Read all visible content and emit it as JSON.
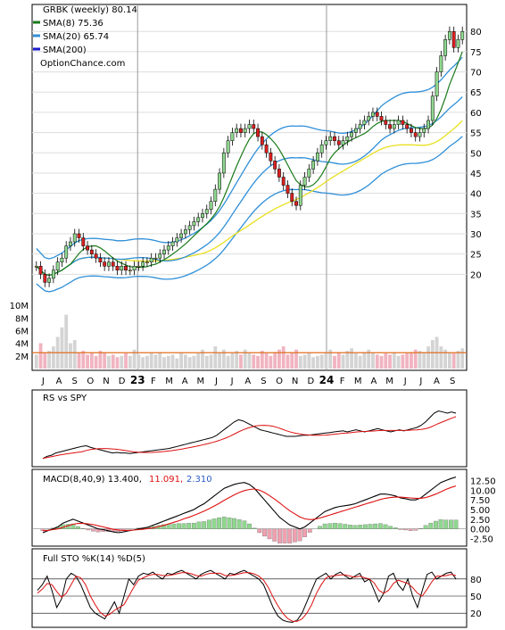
{
  "header": {
    "ticker_line": "GRBK (weekly) 80.14",
    "site": "OptionChance.com"
  },
  "legend": [
    {
      "label": "SMA(8) 75.36",
      "color": "#1a7a1a"
    },
    {
      "label": "SMA(20) 65.74",
      "color": "#2f8fd8"
    },
    {
      "label": "SMA(200)",
      "color": "#1a1acc"
    }
  ],
  "colors": {
    "up_candle": "#8fd88f",
    "down_candle": "#dd2020",
    "neutral_candle": "#f0e040",
    "wick": "#000000",
    "sma8": "#1a7a1a",
    "sma20": "#2f8fd8",
    "sma50": "#e8e020",
    "volume_up": "#d4d4d4",
    "volume_down": "#f0b4c0",
    "volume_avg": "#e07020",
    "rs_line": "#000000",
    "rs_ma": "#dd1010",
    "macd": "#000000",
    "signal": "#dd1010",
    "hist_pos": "#8fd88f",
    "hist_neg": "#f0a0b0",
    "grid": "#dddddd",
    "year_line": "#999999"
  },
  "x_axis": {
    "months": [
      "J",
      "A",
      "S",
      "O",
      "N",
      "D",
      "23",
      "F",
      "M",
      "A",
      "M",
      "J",
      "J",
      "A",
      "S",
      "O",
      "N",
      "D",
      "24",
      "F",
      "M",
      "A",
      "M",
      "J",
      "J",
      "A",
      "S"
    ],
    "year_markers": [
      "23",
      "24"
    ]
  },
  "panels": {
    "rs": {
      "title": "RS vs SPY"
    },
    "macd": {
      "title": "MACD(8,40,9) 13.400,",
      "value1": "11.091,",
      "value2": "2.310",
      "ticks": [
        "12.50",
        "10.00",
        "7.50",
        "5.00",
        "2.50",
        "0.00",
        "-2.50"
      ]
    },
    "sto": {
      "title": "Full STO %K(14) %D(5)",
      "ticks": [
        "80",
        "50",
        "20"
      ]
    }
  },
  "chart_data": [
    {
      "type": "candlestick",
      "title": "GRBK (weekly) 80.14",
      "ylim": [
        15,
        86
      ],
      "yticks": [
        20,
        25,
        30,
        35,
        40,
        45,
        50,
        55,
        60,
        65,
        70,
        75,
        80
      ],
      "x_labels": [
        "J",
        "A",
        "S",
        "O",
        "N",
        "D",
        "23",
        "F",
        "M",
        "A",
        "M",
        "J",
        "J",
        "A",
        "S",
        "O",
        "N",
        "D",
        "24",
        "F",
        "M",
        "A",
        "M",
        "J",
        "J",
        "A",
        "S"
      ],
      "close": [
        22,
        20,
        18,
        19,
        21,
        23,
        24,
        27,
        28,
        30,
        29,
        27,
        26,
        25,
        24,
        23,
        22,
        23,
        22,
        21,
        22,
        21,
        21,
        22,
        22,
        23,
        23,
        24,
        24,
        25,
        26,
        27,
        28,
        29,
        30,
        31,
        32,
        33,
        34,
        35,
        36,
        38,
        41,
        45,
        50,
        53,
        55,
        56,
        55,
        56,
        57,
        56,
        54,
        52,
        50,
        48,
        46,
        44,
        42,
        40,
        38,
        37,
        42,
        44,
        46,
        48,
        50,
        52,
        53,
        54,
        53,
        52,
        53,
        54,
        55,
        56,
        57,
        58,
        59,
        60,
        59,
        58,
        57,
        56,
        57,
        58,
        57,
        56,
        55,
        54,
        55,
        56,
        58,
        64,
        70,
        74,
        78,
        80,
        76,
        78,
        80
      ],
      "series": [
        {
          "name": "SMA(8) 75.36",
          "last": 75.36
        },
        {
          "name": "SMA(20) 65.74",
          "last": 65.74
        },
        {
          "name": "SMA(200)"
        }
      ]
    },
    {
      "type": "bar",
      "title": "Volume",
      "yticks_label": [
        "2M",
        "4M",
        "6M",
        "8M",
        "10M"
      ],
      "ylim": [
        0,
        11
      ],
      "values": [
        2.2,
        4.0,
        2.5,
        2.8,
        3.5,
        5.0,
        6.5,
        8.5,
        4.0,
        4.5,
        2.5,
        2.8,
        2.2,
        2.5,
        2.0,
        2.8,
        2.5,
        2.0,
        2.2,
        1.8,
        2.0,
        2.4,
        2.0,
        3.0,
        2.2,
        1.8,
        2.0,
        2.5,
        2.2,
        2.6,
        1.8,
        2.0,
        2.2,
        1.6,
        2.5,
        2.2,
        1.8,
        2.0,
        2.4,
        3.0,
        2.0,
        2.2,
        3.5,
        2.5,
        3.0,
        2.0,
        2.4,
        2.8,
        2.2,
        3.0,
        2.5,
        2.2,
        2.0,
        2.8,
        2.4,
        2.0,
        2.6,
        3.0,
        3.5,
        2.2,
        2.6,
        3.0,
        2.0,
        2.2,
        2.5,
        1.8,
        2.0,
        2.2,
        2.6,
        3.0,
        2.0,
        2.5,
        2.2,
        2.8,
        3.2,
        2.4,
        2.0,
        2.6,
        3.0,
        2.5,
        2.2,
        2.0,
        2.4,
        2.2,
        2.6,
        2.0,
        2.2,
        2.4,
        2.6,
        3.0,
        2.8,
        2.6,
        3.5,
        4.5,
        5.0,
        3.5,
        3.0,
        2.6,
        2.4,
        2.8,
        3.2
      ],
      "avg_volume": 2.5
    },
    {
      "type": "line",
      "title": "RS vs SPY",
      "series": [
        {
          "name": "RS vs SPY",
          "values": [
            0.1,
            0.14,
            0.16,
            0.2,
            0.22,
            0.24,
            0.26,
            0.28,
            0.3,
            0.32,
            0.33,
            0.3,
            0.28,
            0.26,
            0.24,
            0.22,
            0.2,
            0.21,
            0.2,
            0.2,
            0.19,
            0.2,
            0.21,
            0.22,
            0.23,
            0.24,
            0.25,
            0.26,
            0.27,
            0.28,
            0.3,
            0.32,
            0.34,
            0.36,
            0.38,
            0.4,
            0.42,
            0.44,
            0.46,
            0.48,
            0.52,
            0.58,
            0.64,
            0.7,
            0.76,
            0.8,
            0.78,
            0.74,
            0.7,
            0.66,
            0.62,
            0.6,
            0.58,
            0.56,
            0.54,
            0.52,
            0.5,
            0.5,
            0.5,
            0.51,
            0.52,
            0.52,
            0.53,
            0.54,
            0.55,
            0.56,
            0.57,
            0.58,
            0.59,
            0.6,
            0.58,
            0.6,
            0.62,
            0.6,
            0.58,
            0.6,
            0.62,
            0.64,
            0.62,
            0.6,
            0.58,
            0.6,
            0.62,
            0.6,
            0.62,
            0.64,
            0.66,
            0.7,
            0.76,
            0.84,
            0.92,
            0.96,
            0.94,
            0.92,
            0.94,
            0.92
          ]
        }
      ]
    },
    {
      "type": "line",
      "title": "MACD(8,40,9) 13.400,",
      "yticks": [
        -2.5,
        0,
        2.5,
        5,
        7.5,
        10,
        12.5
      ],
      "ylim": [
        -4,
        14
      ],
      "series": [
        {
          "name": "MACD",
          "values": [
            -1.0,
            -0.5,
            0.0,
            0.5,
            1.5,
            2.0,
            2.5,
            2.0,
            1.5,
            1.0,
            0.5,
            0.0,
            -0.2,
            -0.5,
            -0.8,
            -1.0,
            -0.8,
            -0.5,
            -0.3,
            0.0,
            0.2,
            0.5,
            1.0,
            1.5,
            2.0,
            2.5,
            3.0,
            3.5,
            4.0,
            4.5,
            5.0,
            5.8,
            6.5,
            7.5,
            8.5,
            9.5,
            10.5,
            11.0,
            11.5,
            11.8,
            12.0,
            11.5,
            10.5,
            9.0,
            7.5,
            6.0,
            4.5,
            3.0,
            2.0,
            1.0,
            0.5,
            0.0,
            0.5,
            1.5,
            2.5,
            3.5,
            4.5,
            5.0,
            5.5,
            5.8,
            6.0,
            6.2,
            6.5,
            7.0,
            7.5,
            8.0,
            8.5,
            9.0,
            9.0,
            8.8,
            8.5,
            8.0,
            7.8,
            7.5,
            7.5,
            8.0,
            9.0,
            10.0,
            11.0,
            12.0,
            12.5,
            13.0,
            13.4
          ]
        },
        {
          "name": "Signal",
          "values": [
            -0.5,
            -0.4,
            -0.2,
            0.0,
            0.4,
            0.8,
            1.2,
            1.4,
            1.4,
            1.3,
            1.1,
            0.8,
            0.5,
            0.2,
            -0.1,
            -0.3,
            -0.4,
            -0.4,
            -0.3,
            -0.2,
            -0.1,
            0.1,
            0.3,
            0.6,
            0.9,
            1.3,
            1.7,
            2.1,
            2.6,
            3.0,
            3.5,
            4.0,
            4.6,
            5.2,
            5.9,
            6.6,
            7.4,
            8.1,
            8.8,
            9.4,
            9.9,
            10.2,
            10.3,
            10.0,
            9.4,
            8.6,
            7.7,
            6.7,
            5.7,
            4.7,
            3.9,
            3.1,
            2.6,
            2.4,
            2.5,
            2.8,
            3.2,
            3.6,
            4.0,
            4.4,
            4.8,
            5.2,
            5.6,
            6.0,
            6.4,
            6.8,
            7.2,
            7.6,
            7.9,
            8.1,
            8.2,
            8.2,
            8.1,
            8.0,
            7.9,
            7.9,
            8.1,
            8.5,
            9.0,
            9.6,
            10.2,
            10.7,
            11.1
          ]
        }
      ],
      "histogram": [
        -0.5,
        -0.1,
        0.2,
        0.5,
        1.1,
        1.2,
        1.3,
        0.6,
        0.1,
        -0.3,
        -0.6,
        -0.8,
        -0.7,
        -0.7,
        -0.7,
        -0.7,
        -0.4,
        -0.1,
        0.0,
        0.2,
        0.3,
        0.4,
        0.7,
        0.9,
        1.1,
        1.2,
        1.3,
        1.4,
        1.4,
        1.5,
        1.5,
        1.8,
        1.9,
        2.3,
        2.6,
        2.9,
        3.1,
        2.9,
        2.7,
        2.4,
        2.1,
        1.3,
        0.2,
        -1.0,
        -1.9,
        -2.6,
        -3.2,
        -3.7,
        -3.7,
        -3.7,
        -3.4,
        -3.1,
        -2.1,
        -0.9,
        0.0,
        0.7,
        1.3,
        1.4,
        1.5,
        1.4,
        1.2,
        1.0,
        0.9,
        1.0,
        1.1,
        1.2,
        1.3,
        1.4,
        1.1,
        0.7,
        0.3,
        -0.2,
        -0.3,
        -0.5,
        -0.4,
        0.1,
        0.9,
        1.5,
        2.0,
        2.4,
        2.3,
        2.3,
        2.3
      ]
    },
    {
      "type": "line",
      "title": "Full STO %K(14) %D(5)",
      "yticks": [
        20,
        50,
        80
      ],
      "ylim": [
        0,
        100
      ],
      "series": [
        {
          "name": "%K",
          "values": [
            60,
            70,
            85,
            60,
            30,
            45,
            80,
            90,
            85,
            70,
            50,
            30,
            20,
            15,
            10,
            25,
            40,
            20,
            50,
            80,
            70,
            85,
            90,
            88,
            92,
            85,
            80,
            90,
            88,
            92,
            95,
            90,
            85,
            80,
            88,
            92,
            95,
            90,
            85,
            80,
            90,
            88,
            92,
            95,
            90,
            85,
            80,
            70,
            50,
            30,
            15,
            8,
            5,
            4,
            8,
            20,
            40,
            60,
            80,
            85,
            90,
            80,
            88,
            92,
            85,
            80,
            85,
            90,
            75,
            80,
            60,
            40,
            55,
            85,
            90,
            70,
            60,
            80,
            50,
            30,
            60,
            88,
            92,
            80,
            85,
            90,
            92,
            80
          ]
        },
        {
          "name": "%D",
          "values": [
            55,
            62,
            72,
            70,
            58,
            48,
            55,
            70,
            85,
            82,
            70,
            50,
            35,
            22,
            15,
            18,
            25,
            30,
            35,
            50,
            65,
            78,
            82,
            86,
            88,
            88,
            86,
            86,
            87,
            89,
            91,
            91,
            89,
            86,
            85,
            88,
            90,
            90,
            90,
            86,
            86,
            87,
            89,
            91,
            91,
            89,
            85,
            78,
            65,
            48,
            33,
            20,
            11,
            6,
            6,
            10,
            20,
            35,
            55,
            70,
            82,
            85,
            86,
            87,
            87,
            85,
            83,
            85,
            82,
            80,
            73,
            60,
            55,
            60,
            72,
            78,
            75,
            72,
            65,
            55,
            50,
            62,
            75,
            85,
            85,
            86,
            88,
            86
          ]
        }
      ]
    }
  ]
}
